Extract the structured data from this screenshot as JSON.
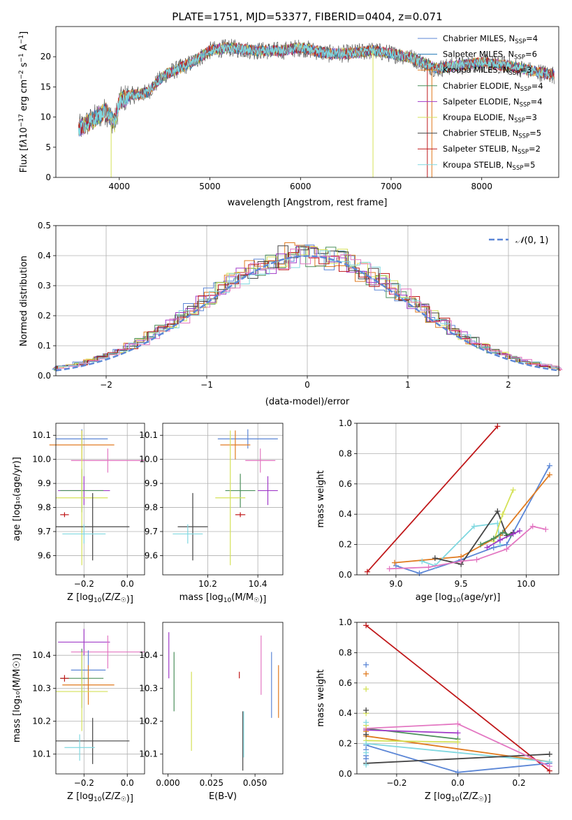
{
  "chart_data": [
    {
      "type": "line",
      "title": "PLATE=1751, MJD=53377, FIBERID=0404, z=0.071",
      "xlabel": "wavelength [Angstrom, rest frame]",
      "ylabel": "Flux [fλ10⁻¹⁷ erg cm⁻² s⁻¹ A⁻¹]",
      "xlim": [
        3300,
        8850
      ],
      "ylim": [
        0,
        25
      ],
      "xticks": [
        4000,
        5000,
        6000,
        7000,
        8000
      ],
      "yticks": [
        0,
        5,
        10,
        15,
        20
      ],
      "legend": "top-right",
      "continuum": [
        [
          3550,
          8
        ],
        [
          3700,
          9.5
        ],
        [
          3850,
          11
        ],
        [
          3950,
          9
        ],
        [
          4000,
          12.5
        ],
        [
          4100,
          13.5
        ],
        [
          4300,
          14
        ],
        [
          4500,
          17
        ],
        [
          4800,
          19
        ],
        [
          5000,
          21
        ],
        [
          5200,
          21.5
        ],
        [
          5500,
          21
        ],
        [
          5800,
          21
        ],
        [
          6000,
          21.5
        ],
        [
          6300,
          20.5
        ],
        [
          6500,
          20.5
        ],
        [
          6800,
          21
        ],
        [
          7000,
          20.5
        ],
        [
          7200,
          20
        ],
        [
          7500,
          18
        ],
        [
          7700,
          18.5
        ],
        [
          8000,
          19
        ],
        [
          8300,
          18.5
        ],
        [
          8600,
          17.5
        ],
        [
          8800,
          17
        ]
      ],
      "series": [
        {
          "name": "Chabrier MILES, N_SSP=4",
          "nssp": "4",
          "color": "#5b86d6"
        },
        {
          "name": "Salpeter MILES, N_SSP=6",
          "nssp": "6",
          "color": "#1f77b4"
        },
        {
          "name": "Kroupa MILES, N_SSP=3",
          "nssp": "3",
          "color": "#e07b20"
        },
        {
          "name": "Chabrier ELODIE, N_SSP=4",
          "nssp": "4",
          "color": "#4a8f5a"
        },
        {
          "name": "Salpeter ELODIE, N_SSP=4",
          "nssp": "4",
          "color": "#a03ac8"
        },
        {
          "name": "Kroupa ELODIE, N_SSP=3",
          "nssp": "3",
          "color": "#d4e157"
        },
        {
          "name": "Chabrier STELIB, N_SSP=5",
          "nssp": "5",
          "color": "#444444"
        },
        {
          "name": "Salpeter STELIB, N_SSP=2",
          "nssp": "2",
          "color": "#c0181a"
        },
        {
          "name": "Kroupa STELIB, N_SSP=5",
          "nssp": "5",
          "color": "#80d8e0"
        }
      ],
      "legend_items": [
        {
          "pre": "Chabrier MILES, N",
          "sub": "SSP",
          "post": "=4"
        },
        {
          "pre": "Salpeter MILES, N",
          "sub": "SSP",
          "post": "=6"
        },
        {
          "pre": "Kroupa MILES, N",
          "sub": "SSP",
          "post": "=3"
        },
        {
          "pre": "Chabrier ELODIE, N",
          "sub": "SSP",
          "post": "=4"
        },
        {
          "pre": "Salpeter ELODIE, N",
          "sub": "SSP",
          "post": "=4"
        },
        {
          "pre": "Kroupa ELODIE, N",
          "sub": "SSP",
          "post": "=3"
        },
        {
          "pre": "Chabrier STELIB, N",
          "sub": "SSP",
          "post": "=5"
        },
        {
          "pre": "Salpeter STELIB, N",
          "sub": "SSP",
          "post": "=2"
        },
        {
          "pre": "Kroupa STELIB, N",
          "sub": "SSP",
          "post": "=5"
        }
      ]
    },
    {
      "type": "line",
      "title": "",
      "xlabel": "(data-model)/error",
      "ylabel": "Normed distribution",
      "xlim": [
        -2.5,
        2.5
      ],
      "ylim": [
        0,
        0.5
      ],
      "xticks": [
        -2,
        -1,
        0,
        1,
        2
      ],
      "yticks": [
        0.0,
        0.1,
        0.2,
        0.3,
        0.4,
        0.5
      ],
      "grid": true,
      "legend": "top-right",
      "reference": {
        "name": "N(0,1)",
        "mu": 0,
        "sigma": 1,
        "color": "#5b86d6"
      },
      "series": [
        {
          "color": "#5b86d6"
        },
        {
          "color": "#e07b20"
        },
        {
          "color": "#4a8f5a"
        },
        {
          "color": "#a03ac8"
        },
        {
          "color": "#d4e157"
        },
        {
          "color": "#444444"
        },
        {
          "color": "#c0181a"
        },
        {
          "color": "#80d8e0"
        },
        {
          "color": "#e377c2"
        }
      ]
    },
    {
      "type": "scatter",
      "xlabel_pre": "Z [log",
      "xlabel_sub": "10",
      "xlabel_post": "(Z/Z",
      "xlabel_end": ")]",
      "ylabel": "age  [log₁₀(age/yr)]",
      "xlim": [
        -0.33,
        0.08
      ],
      "ylim": [
        9.52,
        10.15
      ],
      "xticks": [
        -0.2,
        0.0
      ],
      "yticks": [
        9.6,
        9.7,
        9.8,
        9.9,
        10.0,
        10.1
      ],
      "grid": true,
      "points": [
        {
          "x": -0.21,
          "y": 10.085,
          "xerr": 0.12,
          "yerr": 0.04,
          "color": "#5b86d6"
        },
        {
          "x": -0.21,
          "y": 10.06,
          "xerr": 0.15,
          "yerr": 0.06,
          "color": "#e07b20"
        },
        {
          "x": -0.09,
          "y": 9.995,
          "xerr": 0.17,
          "yerr": 0.05,
          "color": "#e377c2"
        },
        {
          "x": -0.2,
          "y": 9.87,
          "xerr": 0.12,
          "yerr": 0.06,
          "color": "#a03ac8"
        },
        {
          "x": -0.21,
          "y": 9.87,
          "xerr": 0.1,
          "yerr": 0.09,
          "color": "#4a8f5a"
        },
        {
          "x": -0.21,
          "y": 9.84,
          "xerr": 0.12,
          "yerr": 0.28,
          "color": "#d4e157"
        },
        {
          "x": -0.29,
          "y": 9.77,
          "xerr": 0.02,
          "yerr": 0.01,
          "color": "#c0181a"
        },
        {
          "x": -0.16,
          "y": 9.72,
          "xerr": 0.17,
          "yerr": 0.14,
          "color": "#444444"
        },
        {
          "x": -0.2,
          "y": 9.69,
          "xerr": 0.1,
          "yerr": 0.04,
          "color": "#80d8e0"
        }
      ]
    },
    {
      "type": "scatter",
      "xlabel_pre": "mass [log",
      "xlabel_sub": "10",
      "xlabel_post": "(M/M",
      "xlabel_end": ")]",
      "ylabel": "",
      "xlim": [
        10.02,
        10.5
      ],
      "ylim": [
        9.52,
        10.15
      ],
      "xticks": [
        10.2,
        10.4
      ],
      "yticks": [
        9.6,
        9.7,
        9.8,
        9.9,
        10.0,
        10.1
      ],
      "grid": true,
      "points": [
        {
          "x": 10.36,
          "y": 10.085,
          "xerr": 0.12,
          "yerr": 0.04,
          "color": "#5b86d6"
        },
        {
          "x": 10.31,
          "y": 10.06,
          "xerr": 0.06,
          "yerr": 0.06,
          "color": "#e07b20"
        },
        {
          "x": 10.41,
          "y": 9.995,
          "xerr": 0.06,
          "yerr": 0.05,
          "color": "#e377c2"
        },
        {
          "x": 10.44,
          "y": 9.87,
          "xerr": 0.04,
          "yerr": 0.06,
          "color": "#a03ac8"
        },
        {
          "x": 10.33,
          "y": 9.87,
          "xerr": 0.06,
          "yerr": 0.07,
          "color": "#4a8f5a"
        },
        {
          "x": 10.29,
          "y": 9.84,
          "xerr": 0.06,
          "yerr": 0.28,
          "color": "#d4e157"
        },
        {
          "x": 10.33,
          "y": 9.77,
          "xerr": 0.02,
          "yerr": 0.01,
          "color": "#c0181a"
        },
        {
          "x": 10.14,
          "y": 9.72,
          "xerr": 0.06,
          "yerr": 0.14,
          "color": "#444444"
        },
        {
          "x": 10.12,
          "y": 9.69,
          "xerr": 0.06,
          "yerr": 0.04,
          "color": "#80d8e0"
        }
      ]
    },
    {
      "type": "line",
      "xlabel_pre": "age  [log",
      "xlabel_sub": "10",
      "xlabel_post": "(age/yr)]",
      "ylabel": "mass weight",
      "xlim": [
        8.7,
        10.25
      ],
      "ylim": [
        0,
        1.0
      ],
      "xticks": [
        9.0,
        9.5,
        10.0
      ],
      "yticks": [
        0.0,
        0.2,
        0.4,
        0.6,
        0.8,
        1.0
      ],
      "grid": true,
      "series": [
        {
          "color": "#c0181a",
          "x": [
            8.78,
            9.78
          ],
          "y": [
            0.02,
            0.98
          ]
        },
        {
          "color": "#5b86d6",
          "x": [
            9.0,
            9.18,
            9.5,
            9.75,
            9.85,
            10.18
          ],
          "y": [
            0.06,
            0.01,
            0.1,
            0.18,
            0.2,
            0.72
          ]
        },
        {
          "color": "#e07b20",
          "x": [
            8.99,
            9.5,
            9.8,
            10.18
          ],
          "y": [
            0.08,
            0.12,
            0.26,
            0.66
          ]
        },
        {
          "color": "#80d8e0",
          "x": [
            9.2,
            9.3,
            9.6,
            9.78,
            9.8
          ],
          "y": [
            0.09,
            0.06,
            0.32,
            0.34,
            0.2
          ]
        },
        {
          "color": "#444444",
          "x": [
            9.3,
            9.5,
            9.78,
            9.85,
            9.9
          ],
          "y": [
            0.11,
            0.07,
            0.42,
            0.26,
            0.28
          ]
        },
        {
          "color": "#d4e157",
          "x": [
            9.75,
            9.82,
            9.9
          ],
          "y": [
            0.22,
            0.4,
            0.56
          ]
        },
        {
          "color": "#4a8f5a",
          "x": [
            9.65,
            9.75,
            9.82,
            9.88
          ],
          "y": [
            0.2,
            0.24,
            0.28,
            0.26
          ]
        },
        {
          "color": "#a03ac8",
          "x": [
            9.7,
            9.8,
            9.9,
            9.95
          ],
          "y": [
            0.18,
            0.23,
            0.27,
            0.29
          ]
        },
        {
          "color": "#e377c2",
          "x": [
            8.95,
            9.25,
            9.5,
            9.62,
            9.85,
            10.05,
            10.15
          ],
          "y": [
            0.04,
            0.05,
            0.09,
            0.1,
            0.17,
            0.32,
            0.3
          ]
        }
      ]
    },
    {
      "type": "scatter",
      "xlabel_pre": "Z [log",
      "xlabel_sub": "10",
      "xlabel_post": "(Z/Z",
      "xlabel_end": ")]",
      "ylabel": "mass [log₁₀(M/M☉)]",
      "xlim": [
        -0.33,
        0.08
      ],
      "ylim": [
        10.04,
        10.5
      ],
      "xticks": [
        -0.2,
        0.0
      ],
      "yticks": [
        10.1,
        10.2,
        10.3,
        10.4
      ],
      "grid": true,
      "points": [
        {
          "x": -0.2,
          "y": 10.44,
          "xerr": 0.12,
          "yerr": 0.04,
          "color": "#a03ac8"
        },
        {
          "x": -0.09,
          "y": 10.41,
          "xerr": 0.17,
          "yerr": 0.05,
          "color": "#e377c2"
        },
        {
          "x": -0.18,
          "y": 10.355,
          "xerr": 0.08,
          "yerr": 0.06,
          "color": "#5b86d6"
        },
        {
          "x": -0.21,
          "y": 10.33,
          "xerr": 0.1,
          "yerr": 0.09,
          "color": "#4a8f5a"
        },
        {
          "x": -0.29,
          "y": 10.33,
          "xerr": 0.02,
          "yerr": 0.01,
          "color": "#c0181a"
        },
        {
          "x": -0.18,
          "y": 10.31,
          "xerr": 0.12,
          "yerr": 0.06,
          "color": "#e07b20"
        },
        {
          "x": -0.21,
          "y": 10.29,
          "xerr": 0.12,
          "yerr": 0.12,
          "color": "#d4e157"
        },
        {
          "x": -0.16,
          "y": 10.14,
          "xerr": 0.17,
          "yerr": 0.07,
          "color": "#444444"
        },
        {
          "x": -0.22,
          "y": 10.12,
          "xerr": 0.07,
          "yerr": 0.04,
          "color": "#80d8e0"
        }
      ]
    },
    {
      "type": "scatter",
      "xlabel": "E(B-V)",
      "ylabel": "",
      "xlim": [
        -0.003,
        0.066
      ],
      "ylim": [
        10.04,
        10.5
      ],
      "xticks": [
        0.0,
        0.025,
        0.05
      ],
      "xtick_labels": [
        "0.000",
        "0.025",
        "0.050"
      ],
      "yticks": [
        10.1,
        10.2,
        10.3,
        10.4
      ],
      "grid": false,
      "points": [
        {
          "x": 0.0005,
          "y": 10.4,
          "yerr": 0.07,
          "color": "#a03ac8"
        },
        {
          "x": 0.0035,
          "y": 10.32,
          "yerr": 0.09,
          "color": "#4a8f5a"
        },
        {
          "x": 0.0135,
          "y": 10.23,
          "yerr": 0.12,
          "color": "#d4e157"
        },
        {
          "x": 0.041,
          "y": 10.34,
          "yerr": 0.01,
          "color": "#c0181a"
        },
        {
          "x": 0.043,
          "y": 10.14,
          "yerr": 0.09,
          "color": "#444444"
        },
        {
          "x": 0.0435,
          "y": 10.16,
          "yerr": 0.07,
          "color": "#80d8e0"
        },
        {
          "x": 0.0535,
          "y": 10.37,
          "yerr": 0.09,
          "color": "#e377c2"
        },
        {
          "x": 0.0595,
          "y": 10.31,
          "yerr": 0.1,
          "color": "#5b86d6"
        },
        {
          "x": 0.0635,
          "y": 10.29,
          "yerr": 0.08,
          "color": "#e07b20"
        }
      ]
    },
    {
      "type": "line",
      "xlabel_pre": "Z [log",
      "xlabel_sub": "10",
      "xlabel_post": "(Z/Z",
      "xlabel_end": ")]",
      "ylabel": "mass weight",
      "xlim": [
        -0.33,
        0.33
      ],
      "ylim": [
        0,
        1.0
      ],
      "xticks": [
        -0.2,
        0.0,
        0.2
      ],
      "yticks": [
        0.0,
        0.2,
        0.4,
        0.6,
        0.8,
        1.0
      ],
      "grid": true,
      "series": [
        {
          "color": "#c0181a",
          "x": [
            -0.3,
            0.3
          ],
          "y": [
            0.98,
            0.02
          ]
        },
        {
          "color": "#5b86d6",
          "x": [
            -0.3,
            0.0,
            0.3
          ],
          "y": [
            0.19,
            0.01,
            0.07
          ]
        },
        {
          "color": "#e07b20",
          "x": [
            -0.3,
            0.3
          ],
          "y": [
            0.25,
            0.08
          ]
        },
        {
          "color": "#4a8f5a",
          "x": [
            -0.3,
            0.0
          ],
          "y": [
            0.3,
            0.23
          ]
        },
        {
          "color": "#a03ac8",
          "x": [
            -0.3,
            0.0
          ],
          "y": [
            0.29,
            0.27
          ]
        },
        {
          "color": "#d4e157",
          "x": [
            -0.3,
            0.0
          ],
          "y": [
            0.22,
            0.21
          ]
        },
        {
          "color": "#80d8e0",
          "x": [
            -0.3,
            0.3
          ],
          "y": [
            0.2,
            0.08
          ]
        },
        {
          "color": "#444444",
          "x": [
            -0.3,
            0.3
          ],
          "y": [
            0.07,
            0.13
          ]
        },
        {
          "color": "#e377c2",
          "x": [
            -0.3,
            0.0,
            0.3
          ],
          "y": [
            0.3,
            0.33,
            0.05
          ]
        }
      ],
      "left_markers": [
        {
          "color": "#5b86d6",
          "y": [
            0.72,
            0.1,
            0.12,
            0.16
          ]
        },
        {
          "color": "#e07b20",
          "y": [
            0.66,
            0.28
          ]
        },
        {
          "color": "#d4e157",
          "y": [
            0.56,
            0.32,
            0.4
          ]
        },
        {
          "color": "#444444",
          "y": [
            0.42,
            0.26
          ]
        },
        {
          "color": "#80d8e0",
          "y": [
            0.34,
            0.06,
            0.14
          ]
        }
      ]
    }
  ]
}
